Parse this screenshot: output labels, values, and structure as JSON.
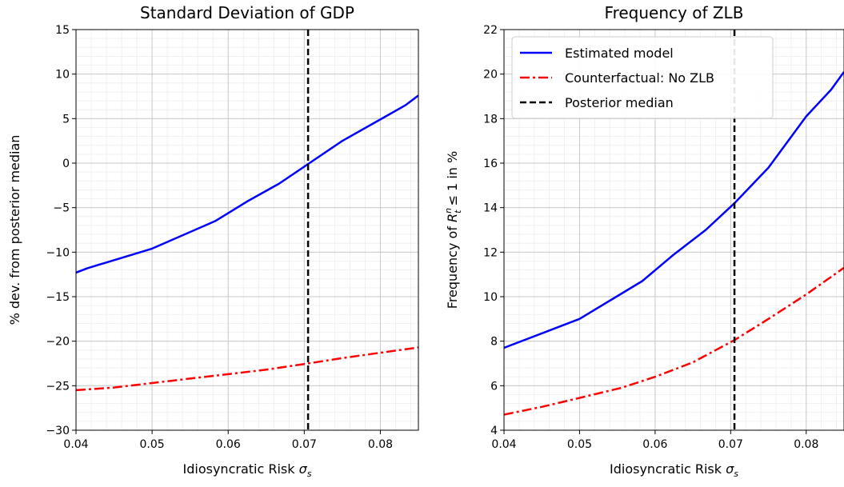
{
  "chart_data": [
    {
      "type": "line",
      "title": "Standard Deviation of GDP",
      "xlabel": "Idiosyncratic Risk",
      "xlabel_symbol": "σ",
      "xlabel_sub": "s",
      "ylabel": "% dev. from posterior median",
      "xlim": [
        0.04,
        0.085
      ],
      "ylim": [
        -30,
        15
      ],
      "xticks": [
        0.04,
        0.05,
        0.06,
        0.07,
        0.08
      ],
      "xtick_labels": [
        "0.04",
        "0.05",
        "0.06",
        "0.07",
        "0.08"
      ],
      "yticks": [
        -30,
        -25,
        -20,
        -15,
        -10,
        -5,
        0,
        5,
        10,
        15
      ],
      "ytick_labels": [
        "−30",
        "−25",
        "−20",
        "−15",
        "−10",
        "−5",
        "0",
        "5",
        "10",
        "15"
      ],
      "grid": true,
      "series": [
        {
          "style": "solid",
          "color": "#0000ff",
          "x": [
            0.04,
            0.0415,
            0.05,
            0.0583,
            0.0625,
            0.0667,
            0.0705,
            0.075,
            0.08,
            0.0833,
            0.085
          ],
          "y": [
            -12.3,
            -11.8,
            -9.6,
            -6.5,
            -4.3,
            -2.3,
            -0.1,
            2.5,
            4.9,
            6.5,
            7.6
          ]
        },
        {
          "style": "dashdot",
          "color": "#ff0000",
          "x": [
            0.04,
            0.0417,
            0.045,
            0.05,
            0.055,
            0.06,
            0.065,
            0.0705,
            0.075,
            0.08,
            0.085
          ],
          "y": [
            -25.5,
            -25.4,
            -25.2,
            -24.7,
            -24.2,
            -23.7,
            -23.2,
            -22.5,
            -21.9,
            -21.3,
            -20.7
          ]
        }
      ],
      "vline": {
        "x": 0.0705,
        "style": "dashed",
        "color": "#000000"
      }
    },
    {
      "type": "line",
      "title": "Frequency of ZLB",
      "xlabel": "Idiosyncratic Risk",
      "xlabel_symbol": "σ",
      "xlabel_sub": "s",
      "ylabel_pre": "Frequency of ",
      "ylabel_sym": "R",
      "ylabel_sub": "t",
      "ylabel_sup": "n",
      "ylabel_post": " ≤ 1  in %",
      "xlim": [
        0.04,
        0.085
      ],
      "ylim": [
        4,
        22
      ],
      "xticks": [
        0.04,
        0.05,
        0.06,
        0.07,
        0.08
      ],
      "xtick_labels": [
        "0.04",
        "0.05",
        "0.06",
        "0.07",
        "0.08"
      ],
      "yticks": [
        4,
        6,
        8,
        10,
        12,
        14,
        16,
        18,
        20,
        22
      ],
      "ytick_labels": [
        "4",
        "6",
        "8",
        "10",
        "12",
        "14",
        "16",
        "18",
        "20",
        "22"
      ],
      "grid": true,
      "legend_position": "top-left",
      "series": [
        {
          "name": "Estimated model",
          "style": "solid",
          "color": "#0000ff",
          "x": [
            0.04,
            0.045,
            0.05,
            0.0583,
            0.0625,
            0.0667,
            0.0705,
            0.075,
            0.08,
            0.0833,
            0.085
          ],
          "y": [
            7.7,
            8.35,
            9.0,
            10.7,
            11.9,
            13.0,
            14.2,
            15.8,
            18.1,
            19.3,
            20.1
          ]
        },
        {
          "name": "Counterfactual: No ZLB",
          "style": "dashdot",
          "color": "#ff0000",
          "x": [
            0.04,
            0.045,
            0.05,
            0.0555,
            0.06,
            0.065,
            0.0705,
            0.075,
            0.08,
            0.085
          ],
          "y": [
            4.7,
            5.05,
            5.45,
            5.9,
            6.4,
            7.05,
            8.05,
            9.0,
            10.1,
            11.3
          ]
        },
        {
          "name": "Posterior median",
          "style": "dashed",
          "color": "#000000",
          "vline_x": 0.0705
        }
      ]
    }
  ]
}
